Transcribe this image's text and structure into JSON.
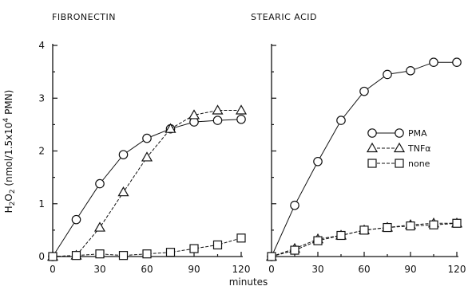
{
  "chart_data": [
    {
      "type": "line",
      "title": "FIBRONECTIN",
      "xlabel": "",
      "ylabel": "H2O2 (nmol/1.5x10^4 PMN)",
      "ylabel_parts": [
        "H",
        "2",
        "O",
        "2",
        " (nmol/1.5x10",
        "4",
        " PMN)"
      ],
      "x": [
        0,
        15,
        30,
        45,
        60,
        75,
        90,
        105,
        120
      ],
      "xticks": [
        0,
        30,
        60,
        90,
        120
      ],
      "yticks": [
        0,
        1,
        2,
        3,
        4
      ],
      "xlim": [
        0,
        120
      ],
      "ylim": [
        0,
        4
      ],
      "grid": false,
      "series": [
        {
          "name": "PMA",
          "marker": "circle",
          "values": [
            0,
            0.7,
            1.38,
            1.93,
            2.24,
            2.42,
            2.55,
            2.58,
            2.6
          ]
        },
        {
          "name": "TNFα",
          "marker": "triangle",
          "values": [
            0,
            0.02,
            0.55,
            1.22,
            1.88,
            2.42,
            2.68,
            2.77,
            2.77
          ]
        },
        {
          "name": "none",
          "marker": "square",
          "values": [
            0,
            0.02,
            0.05,
            0.02,
            0.05,
            0.08,
            0.15,
            0.22,
            0.35
          ]
        }
      ]
    },
    {
      "type": "line",
      "title": "STEARIC ACID",
      "xlabel": "minutes",
      "ylabel": "",
      "x": [
        0,
        15,
        30,
        45,
        60,
        75,
        90,
        105,
        120
      ],
      "xticks": [
        0,
        30,
        60,
        90,
        120
      ],
      "yticks": [
        0,
        1,
        2,
        3,
        4
      ],
      "xlim": [
        0,
        120
      ],
      "ylim": [
        0,
        4
      ],
      "grid": false,
      "legend": "right",
      "series": [
        {
          "name": "PMA",
          "marker": "circle",
          "values": [
            0,
            0.97,
            1.8,
            2.58,
            3.13,
            3.45,
            3.52,
            3.68,
            3.68
          ]
        },
        {
          "name": "TNFα",
          "marker": "triangle",
          "values": [
            0,
            0.15,
            0.33,
            0.4,
            0.5,
            0.55,
            0.6,
            0.63,
            0.63
          ]
        },
        {
          "name": "none",
          "marker": "square",
          "values": [
            0,
            0.12,
            0.3,
            0.4,
            0.5,
            0.55,
            0.58,
            0.6,
            0.63
          ]
        }
      ]
    }
  ]
}
